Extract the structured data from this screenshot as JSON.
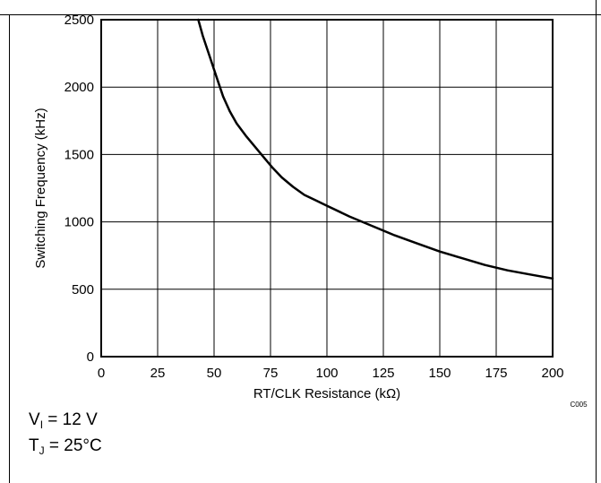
{
  "chart_data": {
    "type": "line",
    "title": "",
    "xlabel": "RT/CLK Resistance (kΩ)",
    "ylabel": "Switching Frequency (kHz)",
    "xlim": [
      0,
      200
    ],
    "ylim": [
      0,
      2500
    ],
    "x_ticks": [
      "0",
      "25",
      "50",
      "75",
      "100",
      "125",
      "150",
      "175",
      "200"
    ],
    "y_ticks": [
      "0",
      "500",
      "1000",
      "1500",
      "2000",
      "2500"
    ],
    "grid": true,
    "series": [
      {
        "x": [
          43,
          45,
          48,
          51,
          54,
          57,
          60,
          64,
          68,
          72,
          76,
          80,
          85,
          90,
          95,
          100,
          110,
          120,
          130,
          140,
          150,
          160,
          170,
          180,
          190,
          200
        ],
        "values": [
          2500,
          2380,
          2230,
          2080,
          1930,
          1820,
          1730,
          1640,
          1560,
          1480,
          1400,
          1330,
          1260,
          1200,
          1160,
          1120,
          1040,
          970,
          900,
          840,
          780,
          730,
          680,
          640,
          610,
          580
        ]
      }
    ],
    "color": "#000000",
    "code": "C005"
  },
  "conditions": {
    "v_main": "V",
    "v_sub": "I",
    "v_rest": " = 12 V",
    "t_main": "T",
    "t_sub": "J",
    "t_rest": " = 25°C"
  }
}
